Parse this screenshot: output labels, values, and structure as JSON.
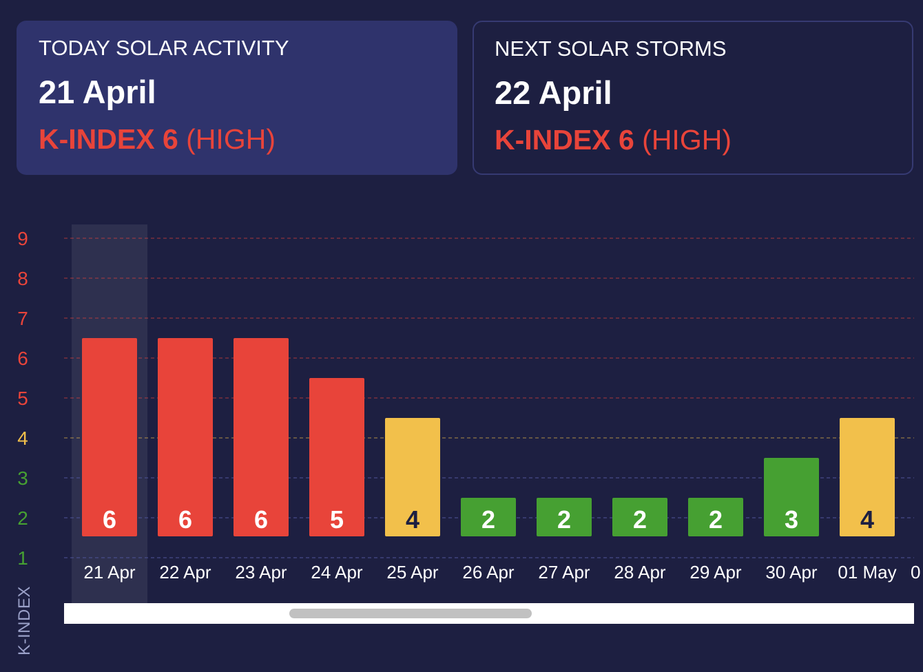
{
  "cards": {
    "today": {
      "label": "TODAY SOLAR ACTIVITY",
      "date": "21 April",
      "kindex_value": "K-INDEX 6",
      "kindex_level": "(HIGH)"
    },
    "next": {
      "label": "NEXT SOLAR STORMS",
      "date": "22 April",
      "kindex_value": "K-INDEX 6",
      "kindex_level": "(HIGH)"
    }
  },
  "colors": {
    "high": "#e8443a",
    "moderate": "#f2c04b",
    "low": "#46a032",
    "background": "#1d1f41",
    "card_highlight": "#2f336c"
  },
  "chart_data": {
    "type": "bar",
    "ylabel": "K-INDEX",
    "xlabel": "",
    "title": "",
    "ylim": [
      1,
      9
    ],
    "yticks": [
      9,
      8,
      7,
      6,
      5,
      4,
      3,
      2,
      1
    ],
    "grid": true,
    "categories": [
      "21 Apr",
      "22 Apr",
      "23 Apr",
      "24 Apr",
      "25 Apr",
      "26 Apr",
      "27 Apr",
      "28 Apr",
      "29 Apr",
      "30 Apr",
      "01 May"
    ],
    "values": [
      6,
      6,
      6,
      5,
      4,
      2,
      2,
      2,
      2,
      3,
      4
    ],
    "highlighted_category": "21 Apr",
    "partially_visible_next_label": "0"
  }
}
